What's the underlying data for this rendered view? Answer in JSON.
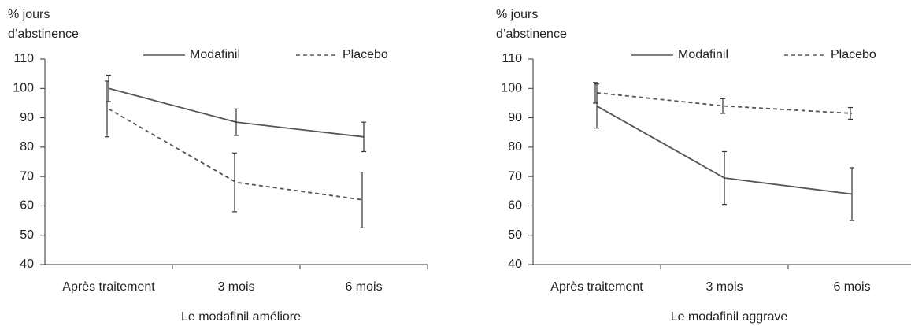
{
  "chart_data": [
    {
      "type": "line",
      "y_label": [
        "% jours",
        "d’abstinence"
      ],
      "x_label": "Le modafinil améliore",
      "categories": [
        "Après traitement",
        "3 mois",
        "6 mois"
      ],
      "ylim": [
        40,
        110
      ],
      "yticks": [
        40,
        50,
        60,
        70,
        80,
        90,
        100,
        110
      ],
      "series": [
        {
          "name": "Modafinil",
          "color": "#555555",
          "dashed": false,
          "values": [
            100,
            88.5,
            83.5
          ],
          "errors": [
            4.5,
            4.5,
            5
          ]
        },
        {
          "name": "Placebo",
          "color": "#555555",
          "dashed": true,
          "values": [
            93,
            68,
            62
          ],
          "errors": [
            9.5,
            10,
            9.5
          ]
        }
      ]
    },
    {
      "type": "line",
      "y_label": [
        "% jours",
        "d’abstinence"
      ],
      "x_label": "Le modafinil aggrave",
      "categories": [
        "Après traitement",
        "3 mois",
        "6 mois"
      ],
      "ylim": [
        40,
        110
      ],
      "yticks": [
        40,
        50,
        60,
        70,
        80,
        90,
        100,
        110
      ],
      "series": [
        {
          "name": "Modafinil",
          "color": "#555555",
          "dashed": false,
          "values": [
            94,
            69.5,
            64
          ],
          "errors": [
            7.5,
            9,
            9
          ]
        },
        {
          "name": "Placebo",
          "color": "#555555",
          "dashed": true,
          "values": [
            98.5,
            94,
            91.5
          ],
          "errors": [
            3.5,
            2.5,
            2
          ]
        }
      ]
    }
  ]
}
